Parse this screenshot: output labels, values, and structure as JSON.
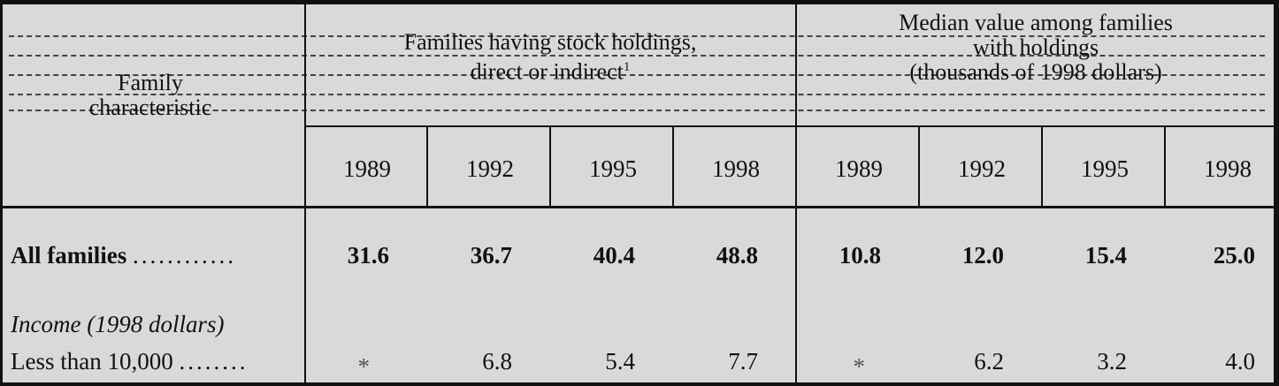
{
  "header": {
    "stub": [
      "Family",
      "characteristic"
    ],
    "group1": [
      "Families having stock holdings,",
      "direct or indirect",
      "1"
    ],
    "group2": [
      "Median value among families",
      "with holdings",
      "(thousands of 1998 dollars)"
    ]
  },
  "years": [
    "1989",
    "1992",
    "1995",
    "1998",
    "1989",
    "1992",
    "1995",
    "1998"
  ],
  "rows": {
    "all_families": {
      "label": "All families",
      "values": [
        "31.6",
        "36.7",
        "40.4",
        "48.8",
        "10.8",
        "12.0",
        "15.4",
        "25.0"
      ]
    },
    "section_label": "Income (1998 dollars)",
    "less_than_10000": {
      "label": "Less than 10,000",
      "values": [
        "*",
        "6.8",
        "5.4",
        "7.7",
        "*",
        "6.2",
        "3.2",
        "4.0"
      ]
    }
  }
}
